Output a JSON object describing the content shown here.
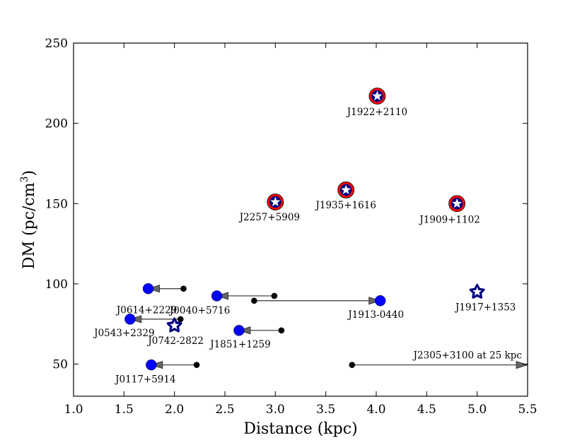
{
  "chart_data": {
    "type": "scatter",
    "title": "",
    "xlabel": "Distance (kpc)",
    "ylabel_main": "DM (pc/cm",
    "ylabel_sup": "3",
    "ylabel_close": ")",
    "xlim": [
      1.0,
      5.5
    ],
    "ylim": [
      30,
      250
    ],
    "xticks": [
      "1.0",
      "1.5",
      "2.0",
      "2.5",
      "3.0",
      "3.5",
      "4.0",
      "4.5",
      "5.0",
      "5.5"
    ],
    "yticks": [
      "50",
      "100",
      "150",
      "200",
      "250"
    ],
    "colors": {
      "blue": "#0000ff",
      "red": "#ff0000",
      "navy": "#000080",
      "arrow": "#666666",
      "black": "#000000"
    },
    "red_star_pulsars": [
      {
        "name": "J1922+2110",
        "x": 4.01,
        "y": 217
      },
      {
        "name": "J2257+5909",
        "x": 3.0,
        "y": 151
      },
      {
        "name": "J1935+1616",
        "x": 3.7,
        "y": 158.5
      },
      {
        "name": "J1909+1102",
        "x": 4.8,
        "y": 150
      }
    ],
    "star_pulsars": [
      {
        "name": "J1917+1353",
        "x": 5.0,
        "y": 95
      },
      {
        "name": "J0742-2822",
        "x": 2.0,
        "y": 74
      }
    ],
    "arrow_pulsars": [
      {
        "name": "J0614+2229",
        "x_from": 2.09,
        "x_to": 1.74,
        "y": 97
      },
      {
        "name": "J0040+5716",
        "x_from": 2.99,
        "x_to": 2.42,
        "y": 92.5
      },
      {
        "name": "J1913-0440",
        "x_from": 2.79,
        "x_to": 4.04,
        "y": 89.5
      },
      {
        "name": "J0543+2329",
        "x_from": 2.06,
        "x_to": 1.56,
        "y": 78
      },
      {
        "name": "J1851+1259",
        "x_from": 3.06,
        "x_to": 2.64,
        "y": 71
      },
      {
        "name": "J0117+5914",
        "x_from": 2.22,
        "x_to": 1.77,
        "y": 49.5
      }
    ],
    "out_of_range": [
      {
        "name": "J2305+3100 at 25 kpc",
        "x_from": 3.76,
        "x_to": 5.5,
        "y": 49.5
      }
    ]
  }
}
